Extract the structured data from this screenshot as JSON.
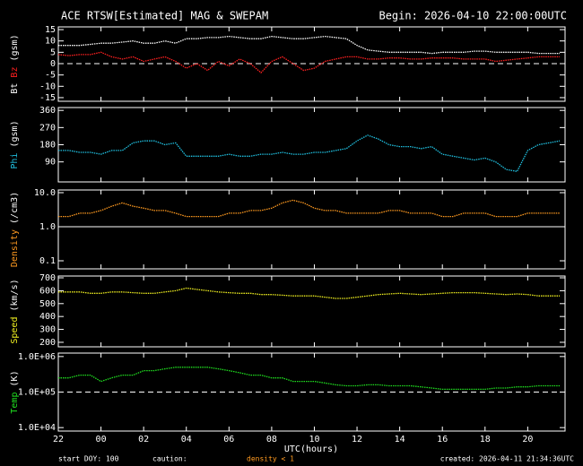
{
  "title": "ACE RTSW[Estimated] MAG & SWEPAM",
  "begin": "Begin: 2026-04-10 22:00:00UTC",
  "footer": {
    "start": "start DOY: 100",
    "caution": "caution:",
    "caution_note": "density < 1",
    "created": "created: 2026-04-11 21:34:36UTC"
  },
  "chart_data": {
    "type": "scatter",
    "xlabel": "UTC(hours)",
    "x": [
      22,
      22.5,
      23,
      23.5,
      24,
      24.5,
      25,
      25.5,
      26,
      26.5,
      27,
      27.5,
      28,
      28.5,
      29,
      29.5,
      30,
      30.5,
      31,
      31.5,
      32,
      32.5,
      33,
      33.5,
      34,
      34.5,
      35,
      35.5,
      36,
      36.5,
      37,
      37.5,
      38,
      38.5,
      39,
      39.5,
      40,
      40.5,
      41,
      41.5,
      42,
      42.5,
      43,
      43.5,
      44,
      44.5,
      45,
      45.5
    ],
    "xlim": [
      22,
      45.75
    ],
    "xticks": [
      22,
      {
        "value": 24,
        "label": "00"
      },
      {
        "value": 26,
        "label": "02"
      },
      {
        "value": 28,
        "label": "04"
      },
      {
        "value": 30,
        "label": "06"
      },
      {
        "value": 32,
        "label": "08"
      },
      {
        "value": 34,
        "label": "10"
      },
      {
        "value": 36,
        "label": "12"
      },
      {
        "value": 38,
        "label": "14"
      },
      {
        "value": 40,
        "label": "16"
      },
      {
        "value": 42,
        "label": "18"
      },
      {
        "value": 44,
        "label": "20"
      }
    ],
    "panels": [
      {
        "unit": "(gsm)",
        "ylim": [
          -16.6,
          16.2
        ],
        "yticks": [
          -15,
          -10,
          -5,
          0,
          5,
          10,
          15
        ],
        "ref": 0,
        "ref_dash": true,
        "series": [
          {
            "name": "Bt",
            "color": "#ffffff",
            "values": [
              8,
              8,
              8,
              8.5,
              9,
              9,
              9.5,
              10,
              9,
              9,
              10,
              9,
              11,
              11,
              11.5,
              11.5,
              12,
              11.5,
              11,
              11,
              12,
              11.5,
              11,
              11,
              11.5,
              12,
              11.5,
              11,
              8,
              6,
              5.5,
              5,
              5,
              5,
              5,
              4.5,
              5,
              5,
              5,
              5.5,
              5.5,
              5,
              5,
              5,
              5,
              4.5,
              4.5,
              4.5
            ]
          },
          {
            "name": "Bz",
            "color": "#ff2020",
            "values": [
              4,
              3.5,
              4,
              4,
              5,
              3,
              2,
              3,
              1,
              2,
              3,
              1,
              -2,
              0,
              -3,
              1,
              -1,
              2,
              0,
              -4,
              1,
              3,
              0,
              -3,
              -2,
              1,
              2,
              3,
              3,
              2,
              2,
              2.5,
              2.5,
              2,
              2,
              2.5,
              2.5,
              2.5,
              2,
              2,
              2,
              1,
              1.5,
              2,
              2.5,
              3,
              3,
              3
            ]
          }
        ]
      },
      {
        "unit": "(gsm)",
        "ylim": [
          -15,
          375
        ],
        "yticks": [
          90,
          180,
          270,
          360
        ],
        "series": [
          {
            "name": "Phi",
            "color": "#20c0e0",
            "values": [
              150,
              150,
              140,
              140,
              130,
              150,
              150,
              190,
              200,
              200,
              180,
              190,
              120,
              120,
              120,
              120,
              130,
              120,
              120,
              130,
              130,
              140,
              130,
              130,
              140,
              140,
              150,
              160,
              200,
              230,
              210,
              180,
              170,
              170,
              160,
              170,
              130,
              120,
              110,
              100,
              110,
              90,
              50,
              40,
              150,
              180,
              190,
              200
            ]
          }
        ]
      },
      {
        "unit": "(/cm3)",
        "log": true,
        "ylim": [
          0.058,
          12
        ],
        "yticks": [
          0.1,
          {
            "value": 1,
            "label": "1.0"
          },
          {
            "value": 10,
            "label": "10.0"
          }
        ],
        "ref": 1,
        "ref_dash": false,
        "series": [
          {
            "name": "Density",
            "color": "#ff9a20",
            "values": [
              2,
              2,
              2.5,
              2.5,
              3,
              4,
              5,
              4,
              3.5,
              3,
              3,
              2.5,
              2,
              2,
              2,
              2,
              2.5,
              2.5,
              3,
              3,
              3.5,
              5,
              6,
              5,
              3.5,
              3,
              3,
              2.5,
              2.5,
              2.5,
              2.5,
              3,
              3,
              2.5,
              2.5,
              2.5,
              2,
              2,
              2.5,
              2.5,
              2.5,
              2,
              2,
              2,
              2.5,
              2.5,
              2.5,
              2.5
            ]
          }
        ]
      },
      {
        "unit": "(km/s)",
        "ylim": [
          165,
          714
        ],
        "yticks": [
          200,
          300,
          400,
          500,
          600,
          700
        ],
        "series": [
          {
            "name": "Speed",
            "color": "#f0f020",
            "values": [
              590,
              590,
              590,
              580,
              580,
              590,
              590,
              585,
              580,
              580,
              590,
              600,
              620,
              610,
              600,
              590,
              585,
              580,
              580,
              570,
              570,
              565,
              560,
              560,
              560,
              550,
              540,
              540,
              550,
              560,
              570,
              575,
              580,
              575,
              570,
              575,
              580,
              585,
              585,
              585,
              580,
              575,
              570,
              575,
              570,
              560,
              560,
              560
            ]
          }
        ]
      },
      {
        "unit": "(K)",
        "log": true,
        "ylim": [
          8000,
          1250000
        ],
        "yticks": [
          {
            "value": 10000,
            "label": "1.0E+04"
          },
          {
            "value": 100000,
            "label": "1.0E+05"
          },
          {
            "value": 1000000,
            "label": "1.0E+06"
          }
        ],
        "ref": 100000,
        "ref_dash": true,
        "series": [
          {
            "name": "Temp",
            "color": "#20e020",
            "values": [
              250000,
              250000,
              300000,
              300000,
              200000,
              250000,
              300000,
              300000,
              400000,
              400000,
              450000,
              500000,
              500000,
              500000,
              500000,
              450000,
              400000,
              350000,
              300000,
              300000,
              250000,
              250000,
              200000,
              200000,
              200000,
              180000,
              160000,
              150000,
              150000,
              160000,
              160000,
              150000,
              150000,
              150000,
              140000,
              130000,
              120000,
              120000,
              120000,
              120000,
              120000,
              130000,
              130000,
              140000,
              140000,
              150000,
              150000,
              150000
            ]
          }
        ]
      }
    ]
  }
}
